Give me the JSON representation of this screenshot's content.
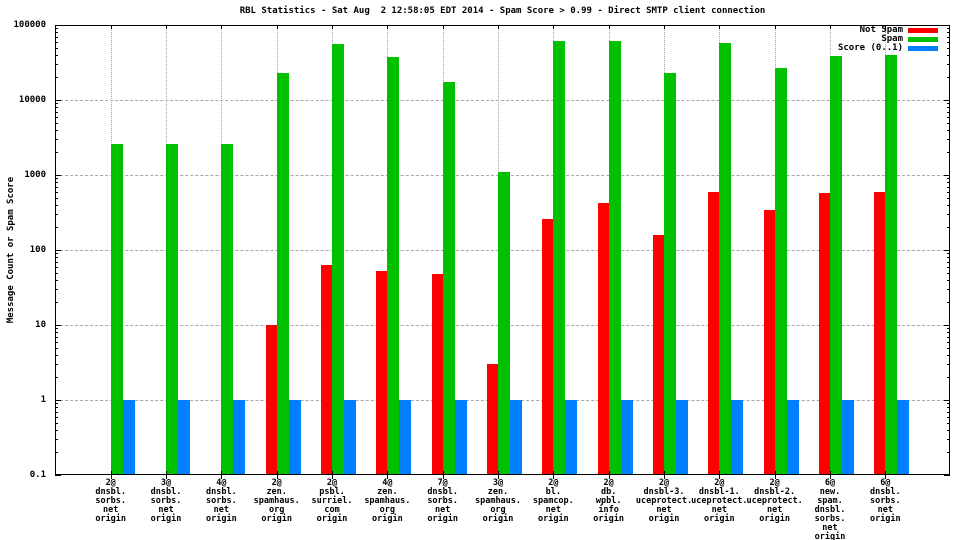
{
  "title": "RBL Statistics - Sat Aug  2 12:58:05 EDT 2014 - Spam Score > 0.99 - Direct SMTP client connection",
  "chart_data": {
    "type": "bar",
    "scale": "log",
    "title": "RBL Statistics - Sat Aug  2 12:58:05 EDT 2014 - Spam Score > 0.99 - Direct SMTP client connection",
    "xlabel": "",
    "ylabel": "Message Count or Spam Score",
    "ylim": [
      0.1,
      100000
    ],
    "yticks": [
      100000,
      10000,
      1000,
      100,
      10,
      1,
      0.1
    ],
    "ytick_labels": [
      "100000",
      "10000",
      "1000",
      "100",
      "10",
      "1",
      "0.1"
    ],
    "grid": true,
    "legend_position": "top-right",
    "categories": [
      [
        "2@",
        "dnsbl.",
        "sorbs.",
        "net",
        "origin"
      ],
      [
        "3@",
        "dnsbl.",
        "sorbs.",
        "net",
        "origin"
      ],
      [
        "4@",
        "dnsbl.",
        "sorbs.",
        "net",
        "origin"
      ],
      [
        "2@",
        "zen.",
        "spamhaus.",
        "org",
        "origin"
      ],
      [
        "2@",
        "psbl.",
        "surriel.",
        "com",
        "origin"
      ],
      [
        "4@",
        "zen.",
        "spamhaus.",
        "org",
        "origin"
      ],
      [
        "7@",
        "dnsbl.",
        "sorbs.",
        "net",
        "origin"
      ],
      [
        "3@",
        "zen.",
        "spamhaus.",
        "org",
        "origin"
      ],
      [
        "2@",
        "bl.",
        "spamcop.",
        "net",
        "origin"
      ],
      [
        "2@",
        "db.",
        "wpbl.",
        "info",
        "origin"
      ],
      [
        "2@",
        "dnsbl-3.",
        "uceprotect.",
        "net",
        "origin"
      ],
      [
        "2@",
        "dnsbl-1.",
        "uceprotect.",
        "net",
        "origin"
      ],
      [
        "2@",
        "dnsbl-2.",
        "uceprotect.",
        "net",
        "origin"
      ],
      [
        "6@",
        "new.",
        "spam.",
        "dnsbl.",
        "sorbs.",
        "net",
        "origin"
      ],
      [
        "6@",
        "dnsbl.",
        "sorbs.",
        "net",
        "origin"
      ]
    ],
    "series": [
      {
        "name": "Not Spam",
        "color": "#ff0000",
        "values": [
          0,
          0,
          0,
          10,
          63,
          52,
          48,
          3,
          260,
          420,
          160,
          590,
          340,
          580,
          590
        ]
      },
      {
        "name": "Spam",
        "color": "#00c000",
        "values": [
          2600,
          2600,
          2600,
          23000,
          55000,
          38000,
          17500,
          1100,
          62000,
          62000,
          23000,
          57000,
          27000,
          39000,
          40000
        ]
      },
      {
        "name": "Score (0..1)",
        "color": "#0080ff",
        "values": [
          1,
          1,
          1,
          1,
          1,
          1,
          1,
          1,
          1,
          1,
          1,
          1,
          1,
          1,
          1
        ]
      }
    ]
  },
  "colors": {
    "not_spam": "#ff0000",
    "spam": "#00c000",
    "score": "#0080ff",
    "grid": "#a8a8a8"
  }
}
